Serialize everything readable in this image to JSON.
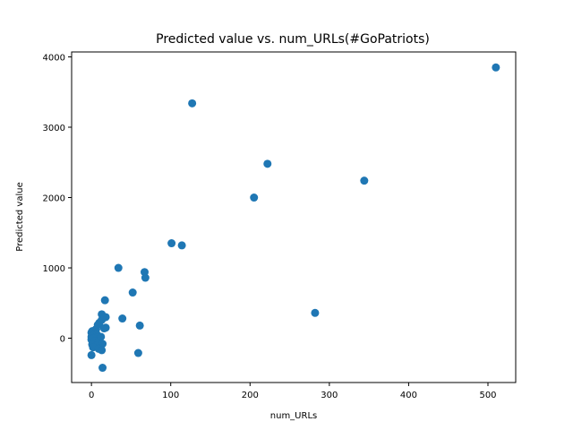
{
  "chart_data": {
    "type": "scatter",
    "title": "Predicted value vs. num_URLs(#GoPatriots)",
    "xlabel": "num_URLs",
    "ylabel": "Predicted value",
    "xlim": [
      -25,
      535
    ],
    "ylim": [
      -630,
      4070
    ],
    "xticks": [
      0,
      100,
      200,
      300,
      400,
      500
    ],
    "yticks": [
      0,
      1000,
      2000,
      3000,
      4000
    ],
    "grid": false,
    "marker_color": "#1f77b4",
    "points": [
      {
        "x": 510,
        "y": 3850
      },
      {
        "x": 127,
        "y": 3340
      },
      {
        "x": 222,
        "y": 2480
      },
      {
        "x": 344,
        "y": 2240
      },
      {
        "x": 205,
        "y": 2000
      },
      {
        "x": 101,
        "y": 1350
      },
      {
        "x": 114,
        "y": 1320
      },
      {
        "x": 34,
        "y": 1000
      },
      {
        "x": 67,
        "y": 940
      },
      {
        "x": 68,
        "y": 860
      },
      {
        "x": 52,
        "y": 650
      },
      {
        "x": 17,
        "y": 540
      },
      {
        "x": 282,
        "y": 360
      },
      {
        "x": 13,
        "y": 340
      },
      {
        "x": 18,
        "y": 300
      },
      {
        "x": 39,
        "y": 280
      },
      {
        "x": 13,
        "y": 260
      },
      {
        "x": 10,
        "y": 220
      },
      {
        "x": 8,
        "y": 190
      },
      {
        "x": 61,
        "y": 180
      },
      {
        "x": 18,
        "y": 150
      },
      {
        "x": 16,
        "y": 140
      },
      {
        "x": 6,
        "y": 130
      },
      {
        "x": 4,
        "y": 110
      },
      {
        "x": 1,
        "y": 100
      },
      {
        "x": 0,
        "y": 80
      },
      {
        "x": 3,
        "y": 60
      },
      {
        "x": 7,
        "y": 50
      },
      {
        "x": 1,
        "y": 40
      },
      {
        "x": 0,
        "y": 20
      },
      {
        "x": 5,
        "y": 10
      },
      {
        "x": 2,
        "y": 0
      },
      {
        "x": 12,
        "y": 20
      },
      {
        "x": 0,
        "y": -20
      },
      {
        "x": 4,
        "y": -40
      },
      {
        "x": 8,
        "y": -60
      },
      {
        "x": 14,
        "y": -80
      },
      {
        "x": 1,
        "y": -90
      },
      {
        "x": 6,
        "y": -110
      },
      {
        "x": 2,
        "y": -130
      },
      {
        "x": 9,
        "y": -150
      },
      {
        "x": 13,
        "y": -170
      },
      {
        "x": 59,
        "y": -210
      },
      {
        "x": 0,
        "y": -240
      },
      {
        "x": 14,
        "y": -420
      }
    ]
  }
}
